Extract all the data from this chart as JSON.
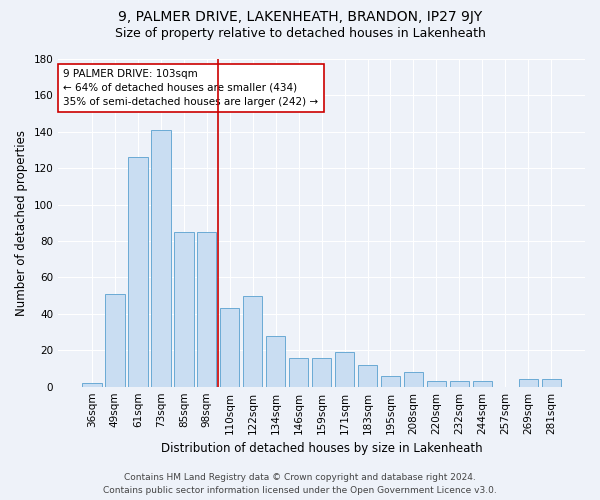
{
  "title1": "9, PALMER DRIVE, LAKENHEATH, BRANDON, IP27 9JY",
  "title2": "Size of property relative to detached houses in Lakenheath",
  "xlabel": "Distribution of detached houses by size in Lakenheath",
  "ylabel": "Number of detached properties",
  "categories": [
    "36sqm",
    "49sqm",
    "61sqm",
    "73sqm",
    "85sqm",
    "98sqm",
    "110sqm",
    "122sqm",
    "134sqm",
    "146sqm",
    "159sqm",
    "171sqm",
    "183sqm",
    "195sqm",
    "208sqm",
    "220sqm",
    "232sqm",
    "244sqm",
    "257sqm",
    "269sqm",
    "281sqm"
  ],
  "values": [
    2,
    51,
    126,
    141,
    85,
    85,
    43,
    50,
    28,
    16,
    16,
    19,
    12,
    6,
    8,
    3,
    3,
    3,
    0,
    4,
    4
  ],
  "bar_color": "#c9ddf2",
  "bar_edge_color": "#6aaad4",
  "vline_x": 5.5,
  "vline_color": "#cc0000",
  "annotation_line1": "9 PALMER DRIVE: 103sqm",
  "annotation_line2": "← 64% of detached houses are smaller (434)",
  "annotation_line3": "35% of semi-detached houses are larger (242) →",
  "annotation_box_color": "#ffffff",
  "annotation_box_edge": "#cc0000",
  "ylim": [
    0,
    180
  ],
  "yticks": [
    0,
    20,
    40,
    60,
    80,
    100,
    120,
    140,
    160,
    180
  ],
  "footer1": "Contains HM Land Registry data © Crown copyright and database right 2024.",
  "footer2": "Contains public sector information licensed under the Open Government Licence v3.0.",
  "bg_color": "#eef2f9",
  "plot_bg_color": "#eef2f9",
  "grid_color": "#ffffff",
  "title1_fontsize": 10,
  "title2_fontsize": 9,
  "axis_label_fontsize": 8.5,
  "tick_fontsize": 7.5,
  "footer_fontsize": 6.5,
  "annotation_fontsize": 7.5
}
